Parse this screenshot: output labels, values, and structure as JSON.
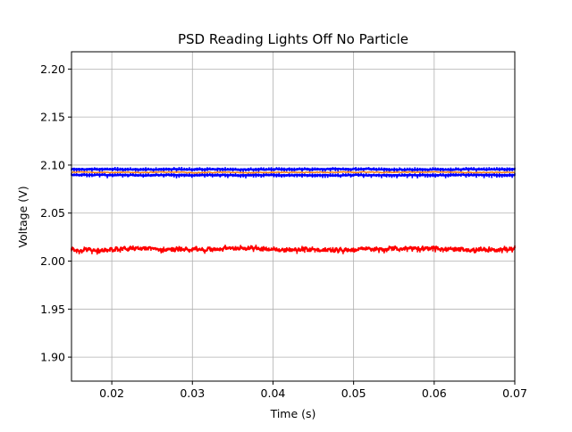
{
  "chart_data": {
    "type": "line",
    "title": "PSD Reading Lights Off No Particle",
    "xlabel": "Time (s)",
    "ylabel": "Voltage (V)",
    "xlim": [
      0.015,
      0.07
    ],
    "ylim": [
      1.875,
      2.218
    ],
    "xticks": [
      0.02,
      0.03,
      0.04,
      0.05,
      0.06,
      0.07
    ],
    "xtick_labels": [
      "0.02",
      "0.03",
      "0.04",
      "0.05",
      "0.06",
      "0.07"
    ],
    "yticks": [
      1.9,
      1.95,
      2.0,
      2.05,
      2.1,
      2.15,
      2.2
    ],
    "ytick_labels": [
      "1.90",
      "1.95",
      "2.00",
      "2.05",
      "2.10",
      "2.15",
      "2.20"
    ],
    "grid": true,
    "series": [
      {
        "color": "#0000ff",
        "marker": "dot",
        "x": [
          0.015,
          0.07
        ],
        "values": [
          2.0955,
          2.0955
        ],
        "noise": 0.0008
      },
      {
        "color": "#0000ff",
        "marker": "dot",
        "x": [
          0.015,
          0.07
        ],
        "values": [
          2.0895,
          2.0895
        ],
        "noise": 0.0008
      },
      {
        "color": "#ff7f0e",
        "marker": "none",
        "x": [
          0.015,
          0.07
        ],
        "values": [
          2.0925,
          2.0925
        ],
        "noise": 0.0008
      },
      {
        "color": "#ff0000",
        "marker": "dot",
        "x": [
          0.015,
          0.07
        ],
        "values": [
          2.0125,
          2.0125
        ],
        "noise": 0.0035
      }
    ]
  }
}
